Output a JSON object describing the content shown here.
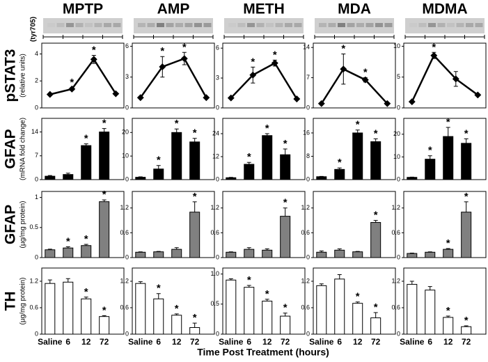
{
  "x_label": "Time Post Treatment (hours)",
  "row_labels": [
    {
      "label": "pSTAT3",
      "note": "(tyr705)",
      "unit": "(relative units)"
    },
    {
      "label": "GFAP",
      "unit": "(mRNA fold change)"
    },
    {
      "label": "GFAP",
      "unit": "(µg/mg protein)"
    },
    {
      "label": "TH",
      "unit": "(µg/mg protein)"
    }
  ],
  "chart_data": [
    {
      "type": "line",
      "title": "MPTP",
      "color": "#000000",
      "values": [
        1,
        1.4,
        3.6,
        1.05
      ],
      "errors": [
        0,
        0.1,
        0.3,
        0
      ],
      "annotations": [
        null,
        "*",
        "*",
        null
      ],
      "ylim": [
        0,
        4.8
      ],
      "yticks": [
        0,
        2,
        4
      ]
    },
    {
      "type": "line",
      "title": "AMP",
      "color": "#000000",
      "values": [
        1,
        4,
        4.8,
        1
      ],
      "errors": [
        0,
        1,
        0.6,
        0
      ],
      "annotations": [
        null,
        "*",
        "*",
        null
      ],
      "ylim": [
        0,
        6.3
      ],
      "yticks": [
        0,
        3,
        6
      ]
    },
    {
      "type": "line",
      "title": "METH",
      "color": "#000000",
      "values": [
        1,
        3.3,
        4.5,
        0.9
      ],
      "errors": [
        0,
        0.8,
        0.3,
        0
      ],
      "annotations": [
        null,
        "*",
        "*",
        null
      ],
      "ylim": [
        0,
        6.5
      ],
      "yticks": [
        0,
        3,
        6
      ]
    },
    {
      "type": "line",
      "title": "MDA",
      "color": "#000000",
      "values": [
        1,
        9,
        6.5,
        1
      ],
      "errors": [
        0,
        3.5,
        0.5,
        0
      ],
      "annotations": [
        null,
        "*",
        "*",
        null
      ],
      "ylim": [
        0,
        15
      ],
      "yticks": [
        0,
        7,
        14
      ]
    },
    {
      "type": "line",
      "title": "MDMA",
      "color": "#000000",
      "values": [
        1,
        8.5,
        4.7,
        2.1
      ],
      "errors": [
        0,
        0.5,
        1.2,
        0.2
      ],
      "annotations": [
        null,
        "*",
        null,
        null
      ],
      "ylim": [
        0,
        10.5
      ],
      "yticks": [
        0,
        5,
        10
      ]
    },
    {
      "type": "bar",
      "color": "#000000",
      "values": [
        1,
        1.5,
        10,
        14
      ],
      "errors": [
        0.2,
        0.4,
        0.5,
        1
      ],
      "annotations": [
        null,
        null,
        "*",
        "*"
      ],
      "ylim": [
        0,
        18
      ],
      "yticks": [
        0,
        7,
        14
      ]
    },
    {
      "type": "bar",
      "color": "#000000",
      "values": [
        1,
        4.5,
        20,
        16
      ],
      "errors": [
        0.2,
        1.5,
        1.5,
        1.5
      ],
      "annotations": [
        null,
        "*",
        "*",
        "*"
      ],
      "ylim": [
        0,
        26
      ],
      "yticks": [
        0,
        10,
        20
      ]
    },
    {
      "type": "bar",
      "color": "#000000",
      "values": [
        1,
        8,
        23,
        13
      ],
      "errors": [
        0.2,
        1,
        1,
        3
      ],
      "annotations": [
        null,
        "*",
        "*",
        "*"
      ],
      "ylim": [
        0,
        32
      ],
      "yticks": [
        0,
        12,
        24
      ]
    },
    {
      "type": "bar",
      "color": "#000000",
      "values": [
        1,
        3.5,
        16,
        13
      ],
      "errors": [
        0.1,
        0.5,
        1,
        1
      ],
      "annotations": [
        null,
        "*",
        "*",
        "*"
      ],
      "ylim": [
        0,
        21
      ],
      "yticks": [
        0,
        8,
        16
      ]
    },
    {
      "type": "bar",
      "color": "#000000",
      "values": [
        1,
        9,
        19,
        16
      ],
      "errors": [
        0.1,
        1.5,
        4,
        2
      ],
      "annotations": [
        null,
        "*",
        "*",
        "*"
      ],
      "ylim": [
        0,
        27
      ],
      "yticks": [
        0,
        10,
        20
      ]
    },
    {
      "type": "bar",
      "color": "#808080",
      "values": [
        0.13,
        0.16,
        0.2,
        0.93
      ],
      "errors": [
        0.01,
        0.02,
        0.02,
        0.03
      ],
      "annotations": [
        null,
        "*",
        "*",
        "*"
      ],
      "ylim": [
        0,
        1.1
      ],
      "yticks": [
        0,
        0.5,
        1
      ]
    },
    {
      "type": "bar",
      "color": "#808080",
      "values": [
        0.13,
        0.14,
        0.2,
        1.1
      ],
      "errors": [
        0.01,
        0.01,
        0.04,
        0.25
      ],
      "annotations": [
        null,
        null,
        null,
        "*"
      ],
      "ylim": [
        0,
        1.6
      ],
      "yticks": [
        0,
        0.6,
        1.2
      ]
    },
    {
      "type": "bar",
      "color": "#808080",
      "values": [
        0.13,
        0.2,
        0.18,
        1
      ],
      "errors": [
        0.01,
        0.04,
        0.03,
        0.2
      ],
      "annotations": [
        null,
        null,
        null,
        "*"
      ],
      "ylim": [
        0,
        1.6
      ],
      "yticks": [
        0,
        0.6,
        1.2
      ]
    },
    {
      "type": "bar",
      "color": "#808080",
      "values": [
        0.13,
        0.18,
        0.14,
        0.85
      ],
      "errors": [
        0.03,
        0.03,
        0.01,
        0.05
      ],
      "annotations": [
        null,
        null,
        null,
        "*"
      ],
      "ylim": [
        0,
        1.6
      ],
      "yticks": [
        0,
        0.6,
        1.2
      ]
    },
    {
      "type": "bar",
      "color": "#808080",
      "values": [
        0.1,
        0.13,
        0.2,
        1.1
      ],
      "errors": [
        0.01,
        0.01,
        0.02,
        0.25
      ],
      "annotations": [
        null,
        null,
        "*",
        "*"
      ],
      "ylim": [
        0,
        1.6
      ],
      "yticks": [
        0,
        0.6,
        1.2
      ]
    },
    {
      "type": "bar",
      "color": "#ffffff",
      "categories": [
        "Saline",
        "6",
        "12",
        "72"
      ],
      "values": [
        1.15,
        1.18,
        0.8,
        0.4
      ],
      "errors": [
        0.08,
        0.08,
        0.04,
        0.02
      ],
      "annotations": [
        null,
        null,
        "*",
        "*"
      ],
      "ylim": [
        0,
        1.5
      ],
      "yticks": [
        0,
        0.6,
        1.2
      ]
    },
    {
      "type": "bar",
      "color": "#ffffff",
      "categories": [
        "Saline",
        "6",
        "12",
        "72"
      ],
      "values": [
        1.15,
        0.8,
        0.43,
        0.15
      ],
      "errors": [
        0.04,
        0.12,
        0.03,
        0.1
      ],
      "annotations": [
        null,
        "*",
        "*",
        "*"
      ],
      "ylim": [
        0,
        1.5
      ],
      "yticks": [
        0,
        0.6,
        1.2
      ]
    },
    {
      "type": "bar",
      "color": "#ffffff",
      "categories": [
        "Saline",
        "6",
        "12",
        "72"
      ],
      "values": [
        0.9,
        0.78,
        0.55,
        0.3
      ],
      "errors": [
        0.02,
        0.03,
        0.03,
        0.05
      ],
      "annotations": [
        null,
        "*",
        "*",
        "*"
      ],
      "ylim": [
        0,
        1.1
      ],
      "yticks": [
        0,
        0.5,
        {
          "value": 1,
          "label": "1.0"
        }
      ]
    },
    {
      "type": "bar",
      "color": "#ffffff",
      "categories": [
        "Saline",
        "6",
        "12",
        "72"
      ],
      "values": [
        1.1,
        1.25,
        0.7,
        0.37
      ],
      "errors": [
        0.04,
        0.1,
        0.03,
        0.12
      ],
      "annotations": [
        null,
        null,
        "*",
        "*"
      ],
      "ylim": [
        0,
        1.5
      ],
      "yticks": [
        0,
        0.6,
        1.2
      ]
    },
    {
      "type": "bar",
      "color": "#ffffff",
      "categories": [
        "Saline",
        "6",
        "12",
        "72"
      ],
      "values": [
        1.13,
        1,
        0.38,
        0.17
      ],
      "errors": [
        0.07,
        0.08,
        0.03,
        0.02
      ],
      "annotations": [
        null,
        null,
        "*",
        "*"
      ],
      "ylim": [
        0,
        1.5
      ],
      "yticks": [
        0,
        0.6,
        1.2
      ]
    }
  ]
}
